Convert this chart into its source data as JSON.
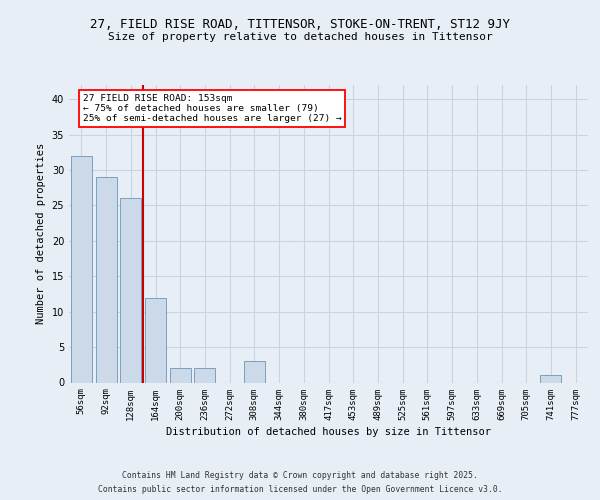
{
  "title1": "27, FIELD RISE ROAD, TITTENSOR, STOKE-ON-TRENT, ST12 9JY",
  "title2": "Size of property relative to detached houses in Tittensor",
  "xlabel": "Distribution of detached houses by size in Tittensor",
  "ylabel": "Number of detached properties",
  "bins": [
    "56sqm",
    "92sqm",
    "128sqm",
    "164sqm",
    "200sqm",
    "236sqm",
    "272sqm",
    "308sqm",
    "344sqm",
    "380sqm",
    "417sqm",
    "453sqm",
    "489sqm",
    "525sqm",
    "561sqm",
    "597sqm",
    "633sqm",
    "669sqm",
    "705sqm",
    "741sqm",
    "777sqm"
  ],
  "values": [
    32,
    29,
    26,
    12,
    2,
    2,
    0,
    3,
    0,
    0,
    0,
    0,
    0,
    0,
    0,
    0,
    0,
    0,
    0,
    1,
    0
  ],
  "bar_color": "#ccd9e8",
  "bar_edge_color": "#7aa0bf",
  "vline_pos": 2.5,
  "vline_color": "#cc0000",
  "annotation_text": "27 FIELD RISE ROAD: 153sqm\n← 75% of detached houses are smaller (79)\n25% of semi-detached houses are larger (27) →",
  "ylim": [
    0,
    42
  ],
  "yticks": [
    0,
    5,
    10,
    15,
    20,
    25,
    30,
    35,
    40
  ],
  "footer1": "Contains HM Land Registry data © Crown copyright and database right 2025.",
  "footer2": "Contains public sector information licensed under the Open Government Licence v3.0.",
  "bg_color": "#e8eef5",
  "grid_color": "#c8d4e0",
  "title1_size": 9,
  "title2_size": 8,
  "xlabel_size": 7.5,
  "ylabel_size": 7.5,
  "tick_size": 6.5,
  "ann_fontsize": 6.8,
  "footer_size": 5.8
}
